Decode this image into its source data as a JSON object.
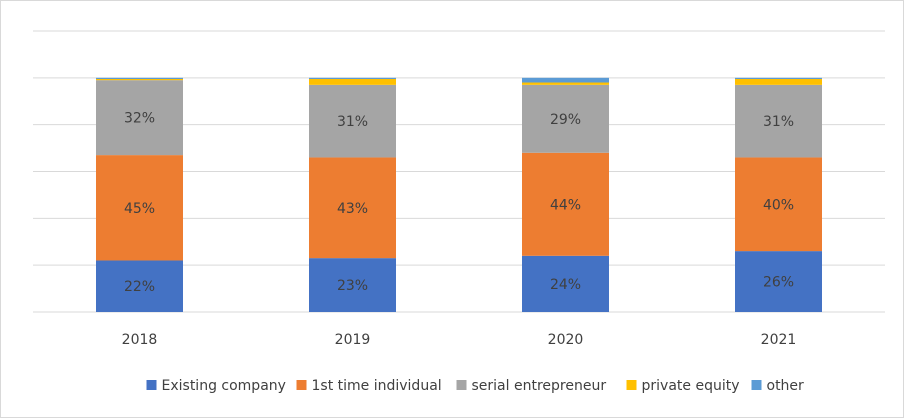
{
  "chart_data": {
    "type": "stacked_bar",
    "categories": [
      "2018",
      "2019",
      "2020",
      "2021"
    ],
    "series": [
      {
        "name": "Existing company",
        "color": "#4472c4",
        "values": [
          22,
          23,
          24,
          26
        ],
        "value_labels": [
          "22%",
          "23%",
          "24%",
          "26%"
        ]
      },
      {
        "name": "1st time individual",
        "color": "#ed7d31",
        "values": [
          45,
          43,
          44,
          40
        ],
        "value_labels": [
          "45%",
          "43%",
          "44%",
          "40%"
        ]
      },
      {
        "name": "serial entrepreneur",
        "color": "#a5a5a5",
        "values": [
          32,
          31,
          29,
          31
        ],
        "value_labels": [
          "32%",
          "31%",
          "29%",
          "31%"
        ]
      },
      {
        "name": "private equity",
        "color": "#ffc000",
        "values": [
          0.5,
          2.5,
          1,
          2.5
        ]
      },
      {
        "name": "other",
        "color": "#5b9bd5",
        "values": [
          0.5,
          0.5,
          2,
          0.5
        ]
      }
    ],
    "ylim": [
      0,
      120
    ],
    "yticks": [
      0,
      20,
      40,
      60,
      80,
      100,
      120
    ],
    "grid": true,
    "legend": "bottom"
  }
}
